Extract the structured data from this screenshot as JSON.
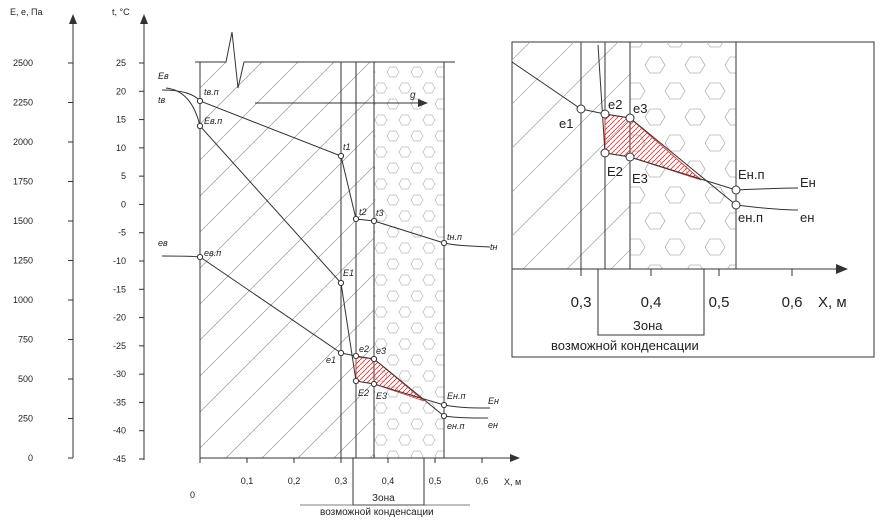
{
  "left_axis": {
    "title": "E, e, Па",
    "ticks": [
      "2500",
      "2250",
      "2000",
      "1750",
      "1500",
      "1250",
      "1000",
      "750",
      "500",
      "250",
      "0"
    ]
  },
  "temp_axis": {
    "title": "t, °C",
    "ticks": [
      "25",
      "20",
      "15",
      "10",
      "5",
      "0",
      "-5",
      "-10",
      "-15",
      "-20",
      "-25",
      "-30",
      "-35",
      "-40",
      "-45"
    ]
  },
  "x_axis": {
    "title": "X, м",
    "origin": "0",
    "ticks": [
      "0,1",
      "0,2",
      "0,3",
      "0,4",
      "0,5",
      "0,6"
    ]
  },
  "zone": {
    "line1": "Зона",
    "line2": "возможной конденсации"
  },
  "flow_label": "g",
  "point_labels": {
    "E_v": "Eв",
    "t_v": "tв",
    "t_vp": "tв.п",
    "E_vp": "Eв.п",
    "t1": "t1",
    "t2": "t2",
    "t3": "t3",
    "t_np": "tн.п",
    "t_n": "tн",
    "e_v": "eв",
    "e_vp": "eв.п",
    "E1": "E1",
    "e1": "e1",
    "e2": "e2",
    "e3": "e3",
    "E2": "E2",
    "E3": "E3",
    "E_np": "Eн.п",
    "E_n": "Eн",
    "e_np": "eн.п",
    "e_n": "eн"
  },
  "inset": {
    "x_axis_title": "X, м",
    "ticks": [
      "0,3",
      "0,4",
      "0,5",
      "0,6"
    ],
    "zone_line1": "Зона",
    "zone_line2": "возможной конденсации",
    "labels": {
      "e1": "e1",
      "e2": "e2",
      "e3": "e3",
      "E2": "E2",
      "E3": "E3",
      "E_np": "Eн.п",
      "E_n": "Eн",
      "e_np": "eн.п",
      "e_n": "eн"
    }
  },
  "colors": {
    "condensation_fill": "#e53935"
  }
}
